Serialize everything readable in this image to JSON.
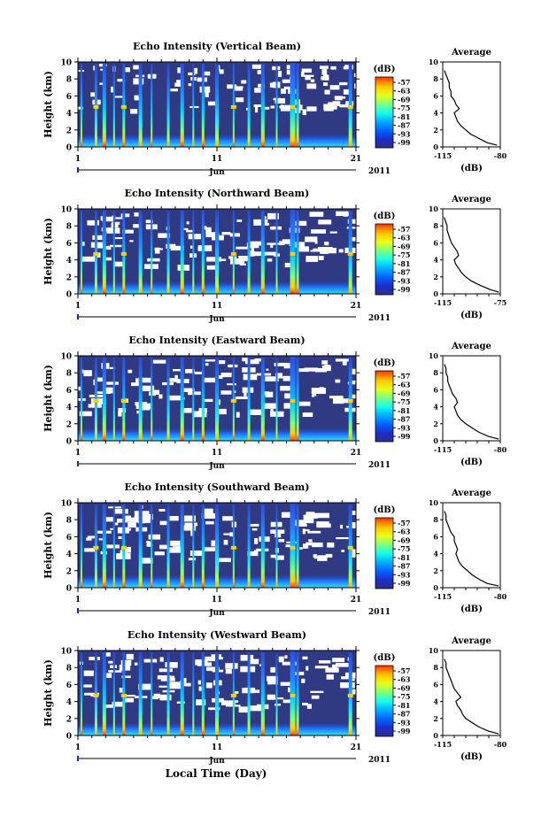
{
  "xlabel": "Local Time (Day)",
  "colorbar": {
    "unit": "(dB)",
    "ticks": [
      "-57",
      "-63",
      "-69",
      "-75",
      "-81",
      "-87",
      "-93",
      "-99"
    ],
    "colors": [
      "#ff2a00",
      "#ff7a00",
      "#ffc800",
      "#e6ff1a",
      "#7fff7f",
      "#1affe6",
      "#00b4ff",
      "#0064ff",
      "#1e2cc8",
      "#2a2e8a"
    ]
  },
  "x_ticks": [
    "1",
    "11",
    "21"
  ],
  "month_label": "Jun",
  "year_label": "2011",
  "average_title": "Average",
  "average_unit": "(dB)",
  "chart_data": [
    {
      "type": "heatmap",
      "title": "Echo Intensity (Vertical Beam)",
      "ylabel": "Height (km)",
      "ylim": [
        0,
        10
      ],
      "y_ticks": [
        "0",
        "2",
        "4",
        "6",
        "8",
        "10"
      ],
      "xlim": [
        1,
        21
      ],
      "profile": {
        "title": "Average",
        "x_ticks": [
          "-115",
          "-80"
        ],
        "xlim": [
          -115,
          -80
        ],
        "height_km": [
          0.2,
          0.5,
          1.0,
          1.5,
          2.0,
          2.5,
          3.0,
          3.5,
          4.0,
          4.5,
          5.0,
          5.5,
          6.0,
          6.5,
          7.0,
          7.5,
          8.0,
          8.5,
          9.0
        ],
        "db": [
          -82,
          -88,
          -93,
          -98,
          -101,
          -104,
          -106,
          -107,
          -108,
          -105,
          -107,
          -108,
          -110,
          -110,
          -111,
          -111,
          -112,
          -113,
          -114
        ]
      }
    },
    {
      "type": "heatmap",
      "title": "Echo Intensity (Northward Beam)",
      "ylabel": "Height (km)",
      "ylim": [
        0,
        10
      ],
      "y_ticks": [
        "0",
        "2",
        "4",
        "6",
        "8",
        "10"
      ],
      "xlim": [
        1,
        21
      ],
      "profile": {
        "title": "Average",
        "x_ticks": [
          "-115",
          "-75"
        ],
        "xlim": [
          -115,
          -75
        ],
        "height_km": [
          0.2,
          0.5,
          1.0,
          1.5,
          2.0,
          2.5,
          3.0,
          3.5,
          4.0,
          4.5,
          5.0,
          5.5,
          6.0,
          6.5,
          7.0,
          7.5,
          8.0,
          8.5,
          9.0
        ],
        "db": [
          -76,
          -82,
          -89,
          -95,
          -99,
          -102,
          -104,
          -106,
          -107,
          -104,
          -105,
          -107,
          -109,
          -110,
          -111,
          -112,
          -112,
          -113,
          -114
        ]
      }
    },
    {
      "type": "heatmap",
      "title": "Echo Intensity (Eastward Beam)",
      "ylabel": "Height (km)",
      "ylim": [
        0,
        10
      ],
      "y_ticks": [
        "0",
        "2",
        "4",
        "6",
        "8",
        "10"
      ],
      "xlim": [
        1,
        21
      ],
      "profile": {
        "title": "Average",
        "x_ticks": [
          "-115",
          "-80"
        ],
        "xlim": [
          -115,
          -80
        ],
        "height_km": [
          0.2,
          0.5,
          1.0,
          1.5,
          2.0,
          2.5,
          3.0,
          3.5,
          4.0,
          4.5,
          5.0,
          5.5,
          6.0,
          6.5,
          7.0,
          7.5,
          8.0,
          8.5,
          9.0
        ],
        "db": [
          -81,
          -87,
          -93,
          -97,
          -101,
          -104,
          -106,
          -107,
          -108,
          -106,
          -107,
          -109,
          -110,
          -111,
          -112,
          -112,
          -113,
          -113,
          -114
        ]
      }
    },
    {
      "type": "heatmap",
      "title": "Echo Intensity (Southward Beam)",
      "ylabel": "Height (km)",
      "ylim": [
        0,
        10
      ],
      "y_ticks": [
        "0",
        "2",
        "4",
        "6",
        "8",
        "10"
      ],
      "xlim": [
        1,
        21
      ],
      "profile": {
        "title": "Average",
        "x_ticks": [
          "-115",
          "-80"
        ],
        "xlim": [
          -115,
          -80
        ],
        "height_km": [
          0.2,
          0.5,
          1.0,
          1.5,
          2.0,
          2.5,
          3.0,
          3.5,
          4.0,
          4.5,
          5.0,
          5.5,
          6.0,
          6.5,
          7.0,
          7.5,
          8.0,
          8.5,
          9.0
        ],
        "db": [
          -81,
          -88,
          -93,
          -97,
          -100,
          -103,
          -105,
          -106,
          -107,
          -106,
          -107,
          -108,
          -108,
          -110,
          -111,
          -112,
          -113,
          -113,
          -114
        ]
      }
    },
    {
      "type": "heatmap",
      "title": "Echo Intensity (Westward Beam)",
      "ylabel": "Height (km)",
      "ylim": [
        0,
        10
      ],
      "y_ticks": [
        "0",
        "2",
        "4",
        "6",
        "8",
        "10"
      ],
      "xlim": [
        1,
        21
      ],
      "profile": {
        "title": "Average",
        "x_ticks": [
          "-115",
          "-80"
        ],
        "xlim": [
          -115,
          -80
        ],
        "height_km": [
          0.2,
          0.5,
          1.0,
          1.5,
          2.0,
          2.5,
          3.0,
          3.5,
          4.0,
          4.5,
          5.0,
          5.5,
          6.0,
          6.5,
          7.0,
          7.5,
          8.0,
          8.5,
          9.0
        ],
        "db": [
          -81,
          -87,
          -93,
          -97,
          -101,
          -103,
          -104,
          -106,
          -107,
          -104,
          -106,
          -108,
          -109,
          -110,
          -111,
          -112,
          -113,
          -113,
          -114
        ]
      }
    }
  ]
}
